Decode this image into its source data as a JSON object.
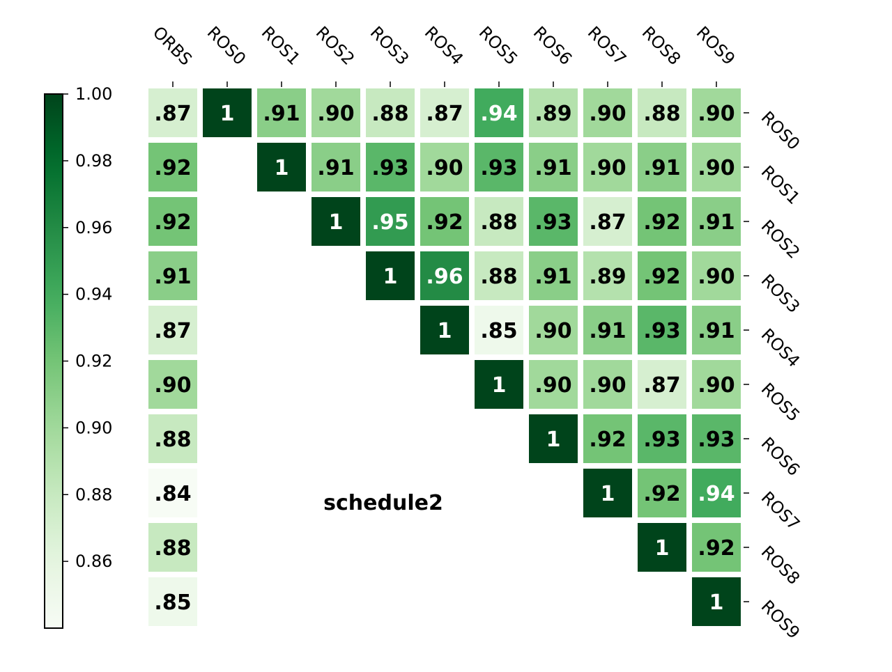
{
  "chart_data": {
    "type": "heatmap",
    "title": "schedule2",
    "columns": [
      "ORBS",
      "ROS0",
      "ROS1",
      "ROS2",
      "ROS3",
      "ROS4",
      "ROS5",
      "ROS6",
      "ROS7",
      "ROS8",
      "ROS9"
    ],
    "rows": [
      "ROS0",
      "ROS1",
      "ROS2",
      "ROS3",
      "ROS4",
      "ROS5",
      "ROS6",
      "ROS7",
      "ROS8",
      "ROS9"
    ],
    "values": [
      [
        0.87,
        1,
        0.91,
        0.9,
        0.88,
        0.87,
        0.94,
        0.89,
        0.9,
        0.88,
        0.9
      ],
      [
        0.92,
        null,
        1,
        0.91,
        0.93,
        0.9,
        0.93,
        0.91,
        0.9,
        0.91,
        0.9
      ],
      [
        0.92,
        null,
        null,
        1,
        0.95,
        0.92,
        0.88,
        0.93,
        0.87,
        0.92,
        0.91
      ],
      [
        0.91,
        null,
        null,
        null,
        1,
        0.96,
        0.88,
        0.91,
        0.89,
        0.92,
        0.9
      ],
      [
        0.87,
        null,
        null,
        null,
        null,
        1,
        0.85,
        0.9,
        0.91,
        0.93,
        0.91
      ],
      [
        0.9,
        null,
        null,
        null,
        null,
        null,
        1,
        0.9,
        0.9,
        0.87,
        0.9
      ],
      [
        0.88,
        null,
        null,
        null,
        null,
        null,
        null,
        1,
        0.92,
        0.93,
        0.93
      ],
      [
        0.84,
        null,
        null,
        null,
        null,
        null,
        null,
        null,
        1,
        0.92,
        0.94
      ],
      [
        0.88,
        null,
        null,
        null,
        null,
        null,
        null,
        null,
        null,
        1,
        0.92
      ],
      [
        0.85,
        null,
        null,
        null,
        null,
        null,
        null,
        null,
        null,
        null,
        1
      ]
    ],
    "cell_labels": [
      [
        ".87",
        "1",
        ".91",
        ".90",
        ".88",
        ".87",
        ".94",
        ".89",
        ".90",
        ".88",
        ".90"
      ],
      [
        ".92",
        "",
        "1",
        ".91",
        ".93",
        ".90",
        ".93",
        ".91",
        ".90",
        ".91",
        ".90"
      ],
      [
        ".92",
        "",
        "",
        "1",
        ".95",
        ".92",
        ".88",
        ".93",
        ".87",
        ".92",
        ".91"
      ],
      [
        ".91",
        "",
        "",
        "",
        "1",
        ".96",
        ".88",
        ".91",
        ".89",
        ".92",
        ".90"
      ],
      [
        ".87",
        "",
        "",
        "",
        "",
        "1",
        ".85",
        ".90",
        ".91",
        ".93",
        ".91"
      ],
      [
        ".90",
        "",
        "",
        "",
        "",
        "",
        "1",
        ".90",
        ".90",
        ".87",
        ".90"
      ],
      [
        ".88",
        "",
        "",
        "",
        "",
        "",
        "",
        "1",
        ".92",
        ".93",
        ".93"
      ],
      [
        ".84",
        "",
        "",
        "",
        "",
        "",
        "",
        "",
        "1",
        ".92",
        ".94"
      ],
      [
        ".88",
        "",
        "",
        "",
        "",
        "",
        "",
        "",
        "",
        "1",
        ".92"
      ],
      [
        ".85",
        "",
        "",
        "",
        "",
        "",
        "",
        "",
        "",
        "",
        "1"
      ]
    ],
    "colorbar": {
      "colormap": "Greens",
      "range": [
        0.84,
        1.0
      ],
      "ticks": [
        0.86,
        0.88,
        0.9,
        0.92,
        0.94,
        0.96,
        0.98,
        1.0
      ],
      "tick_labels": [
        "0.86",
        "0.88",
        "0.90",
        "0.92",
        "0.94",
        "0.96",
        "0.98",
        "1.00"
      ],
      "placement": "left"
    },
    "column_labels_position": "top",
    "row_labels_position": "right",
    "grid": false
  }
}
